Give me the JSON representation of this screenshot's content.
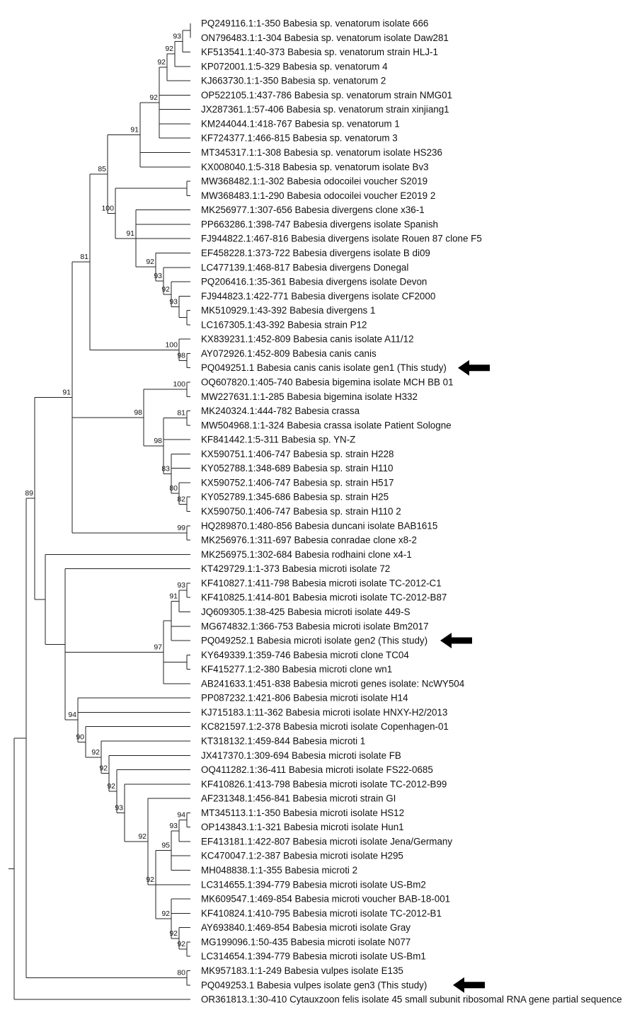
{
  "figure": {
    "line_color": "#222222",
    "arrow_color": "#000000"
  },
  "tips": [
    {
      "id": "t0",
      "label": "PQ249116.1:1-350 Babesia sp. venatorum isolate 666"
    },
    {
      "id": "t1",
      "label": "ON796483.1:1-304 Babesia sp. venatorum isolate Daw281"
    },
    {
      "id": "t2",
      "label": "KF513541.1:40-373 Babesia sp. venatorum strain HLJ-1"
    },
    {
      "id": "t3",
      "label": "KP072001.1:5-329 Babesia sp. venatorum 4"
    },
    {
      "id": "t4",
      "label": "KJ663730.1:1-350 Babesia sp. venatorum 2"
    },
    {
      "id": "t5",
      "label": "OP522105.1:437-786 Babesia sp. venatorum strain NMG01"
    },
    {
      "id": "t6",
      "label": "JX287361.1:57-406 Babesia sp. venatorum strain xinjiang1"
    },
    {
      "id": "t7",
      "label": "KM244044.1:418-767 Babesia sp. venatorum 1"
    },
    {
      "id": "t8",
      "label": "KF724377.1:466-815 Babesia sp. venatorum 3"
    },
    {
      "id": "t9",
      "label": "MT345317.1:1-308 Babesia sp. venatorum isolate HS236"
    },
    {
      "id": "t10",
      "label": "KX008040.1:5-318 Babesia sp. venatorum isolate Bv3"
    },
    {
      "id": "t11",
      "label": "MW368482.1:1-302 Babesia odocoilei voucher S2019"
    },
    {
      "id": "t12",
      "label": "MW368483.1:1-290 Babesia odocoilei voucher E2019 2"
    },
    {
      "id": "t13",
      "label": "MK256977.1:307-656 Babesia divergens clone x36-1"
    },
    {
      "id": "t14",
      "label": "PP663286.1:398-747 Babesia divergens isolate Spanish"
    },
    {
      "id": "t15",
      "label": "FJ944822.1:467-816 Babesia divergens isolate Rouen 87 clone F5"
    },
    {
      "id": "t16",
      "label": "EF458228.1:373-722 Babesia divergens isolate B di09"
    },
    {
      "id": "t17",
      "label": "LC477139.1:468-817 Babesia divergens Donegal"
    },
    {
      "id": "t18",
      "label": "PQ206416.1:35-361 Babesia divergens isolate Devon"
    },
    {
      "id": "t19",
      "label": "FJ944823.1:422-771 Babesia divergens isolate CF2000"
    },
    {
      "id": "t20",
      "label": "MK510929.1:43-392 Babesia divergens 1"
    },
    {
      "id": "t21",
      "label": "LC167305.1:43-392 Babesia strain P12"
    },
    {
      "id": "t22",
      "label": "KX839231.1:452-809 Babesia canis isolate A11/12"
    },
    {
      "id": "t23",
      "label": "AY072926.1:452-809 Babesia canis canis"
    },
    {
      "id": "t24",
      "label": "PQ049251.1 Babesia canis canis isolate gen1 (This study)"
    },
    {
      "id": "t25",
      "label": "OQ607820.1:405-740 Babesia bigemina isolate MCH BB 01"
    },
    {
      "id": "t26",
      "label": "MW227631.1:1-285 Babesia bigemina isolate H332"
    },
    {
      "id": "t27",
      "label": "MK240324.1:444-782 Babesia crassa"
    },
    {
      "id": "t28",
      "label": "MW504968.1:1-324 Babesia crassa isolate Patient Sologne"
    },
    {
      "id": "t29",
      "label": "KF841442.1:5-311 Babesia sp. YN-Z"
    },
    {
      "id": "t30",
      "label": "KX590751.1:406-747 Babesia sp. strain H228"
    },
    {
      "id": "t31",
      "label": "KY052788.1:348-689 Babesia sp. strain H110"
    },
    {
      "id": "t32",
      "label": "KX590752.1:406-747 Babesia sp. strain H517"
    },
    {
      "id": "t33",
      "label": "KY052789.1:345-686 Babesia sp. strain H25"
    },
    {
      "id": "t34",
      "label": "KX590750.1:406-747 Babesia sp. strain H110 2"
    },
    {
      "id": "t35",
      "label": "HQ289870.1:480-856 Babesia duncani isolate BAB1615"
    },
    {
      "id": "t36",
      "label": "MK256976.1:311-697 Babesia conradae clone x8-2"
    },
    {
      "id": "t37",
      "label": "MK256975.1:302-684 Babesia rodhaini clone x4-1"
    },
    {
      "id": "t38",
      "label": "KT429729.1:1-373 Babesia microti isolate 72"
    },
    {
      "id": "t39",
      "label": "KF410827.1:411-798 Babesia microti isolate TC-2012-C1"
    },
    {
      "id": "t40",
      "label": "KF410825.1:414-801 Babesia microti isolate TC-2012-B87"
    },
    {
      "id": "t41",
      "label": "JQ609305.1:38-425 Babesia microti isolate 449-S"
    },
    {
      "id": "t42",
      "label": "MG674832.1:366-753 Babesia microti isolate Bm2017"
    },
    {
      "id": "t43",
      "label": "PQ049252.1 Babesia microti isolate gen2 (This study)"
    },
    {
      "id": "t44",
      "label": "KY649339.1:359-746 Babesia microti clone TC04"
    },
    {
      "id": "t45",
      "label": "KF415277.1:2-380 Babesia microti clone wn1"
    },
    {
      "id": "t46",
      "label": "AB241633.1:451-838 Babesia microti genes isolate: NcWY504"
    },
    {
      "id": "t47",
      "label": "PP087232.1:421-806 Babesia microti isolate H14"
    },
    {
      "id": "t48",
      "label": "KJ715183.1:11-362 Babesia microti isolate HNXY-H2/2013"
    },
    {
      "id": "t49",
      "label": "KC821597.1:2-378 Babesia microti isolate Copenhagen-01"
    },
    {
      "id": "t50",
      "label": "KT318132.1:459-844 Babesia microti 1"
    },
    {
      "id": "t51",
      "label": "JX417370.1:309-694 Babesia microti isolate FB"
    },
    {
      "id": "t52",
      "label": "OQ411282.1:36-411 Babesia microti isolate FS22-0685"
    },
    {
      "id": "t53",
      "label": "KF410826.1:413-798 Babesia microti isolate TC-2012-B99"
    },
    {
      "id": "t54",
      "label": "AF231348.1:456-841 Babesia microti strain GI"
    },
    {
      "id": "t55",
      "label": "MT345113.1:1-350 Babesia microti isolate HS12"
    },
    {
      "id": "t56",
      "label": "OP143843.1:1-321 Babesia microti isolate Hun1"
    },
    {
      "id": "t57",
      "label": "EF413181.1:422-807 Babesia microti isolate Jena/Germany"
    },
    {
      "id": "t58",
      "label": "KC470047.1:2-387 Babesia microti isolate H295"
    },
    {
      "id": "t59",
      "label": "MH048838.1:1-355 Babesia microti 2"
    },
    {
      "id": "t60",
      "label": "LC314655.1:394-779 Babesia microti isolate US-Bm2"
    },
    {
      "id": "t61",
      "label": "MK609547.1:469-854 Babesia microti voucher BAB-18-001"
    },
    {
      "id": "t62",
      "label": "KF410824.1:410-795 Babesia microti isolate TC-2012-B1"
    },
    {
      "id": "t63",
      "label": "AY693840.1:469-854 Babesia microti isolate Gray"
    },
    {
      "id": "t64",
      "label": "MG199096.1:50-435 Babesia microti isolate N077"
    },
    {
      "id": "t65",
      "label": "LC314654.1:394-779 Babesia microti isolate US-Bm1"
    },
    {
      "id": "t66",
      "label": "MK957183.1:1-249 Babesia vulpes isolate E135"
    },
    {
      "id": "t67",
      "label": "PQ049253.1 Babesia vulpes isolate gen3 (This study)"
    },
    {
      "id": "t68",
      "label": "OR361813.1:30-410 Cytauxzoon felis isolate 45 small subunit ribosomal RNA gene partial sequence"
    }
  ],
  "clades": [
    {
      "id": "A",
      "children": [
        "t0",
        "t1"
      ]
    },
    {
      "id": "B",
      "support": "93",
      "children": [
        "A",
        "t2"
      ]
    },
    {
      "id": "C",
      "support": "92",
      "children": [
        "B",
        "t3"
      ]
    },
    {
      "id": "D",
      "support": "92",
      "children": [
        "C",
        "t4"
      ]
    },
    {
      "id": "E",
      "support": "92",
      "children": [
        "D",
        "t5",
        "t6",
        "t7",
        "t8"
      ]
    },
    {
      "id": "F",
      "support": "91",
      "children": [
        "E",
        "t9",
        "t10"
      ]
    },
    {
      "id": "G",
      "children": [
        "t11",
        "t12"
      ]
    },
    {
      "id": "H",
      "children": [
        "t20",
        "t21"
      ]
    },
    {
      "id": "I",
      "support": "93",
      "children": [
        "H",
        "t19"
      ]
    },
    {
      "id": "J",
      "support": "92",
      "children": [
        "I",
        "t18"
      ]
    },
    {
      "id": "K",
      "support": "93",
      "children": [
        "J",
        "t17"
      ]
    },
    {
      "id": "L",
      "support": "92",
      "children": [
        "K",
        "t16"
      ]
    },
    {
      "id": "M",
      "support": "91",
      "children": [
        "L",
        "t13",
        "t14",
        "t15"
      ]
    },
    {
      "id": "N",
      "support": "100",
      "children": [
        "G",
        "M"
      ]
    },
    {
      "id": "O",
      "support": "85",
      "children": [
        "F",
        "N"
      ]
    },
    {
      "id": "P",
      "support": "98",
      "children": [
        "t23",
        "t24"
      ]
    },
    {
      "id": "Q",
      "support": "100",
      "children": [
        "t22",
        "P"
      ]
    },
    {
      "id": "R",
      "support": "81",
      "children": [
        "O",
        "Q"
      ]
    },
    {
      "id": "S",
      "support": "100",
      "children": [
        "t25",
        "t26"
      ]
    },
    {
      "id": "T",
      "support": "81",
      "children": [
        "t27",
        "t28"
      ]
    },
    {
      "id": "U",
      "support": "82",
      "children": [
        "t33",
        "t34"
      ]
    },
    {
      "id": "V",
      "support": "80",
      "children": [
        "t32",
        "U"
      ]
    },
    {
      "id": "W",
      "support": "83",
      "children": [
        "t30",
        "t31",
        "V"
      ]
    },
    {
      "id": "X",
      "support": "98",
      "children": [
        "T",
        "t29",
        "W"
      ]
    },
    {
      "id": "Y",
      "support": "98",
      "children": [
        "S",
        "X"
      ]
    },
    {
      "id": "Z",
      "support": "99",
      "children": [
        "t35",
        "t36"
      ]
    },
    {
      "id": "AA",
      "support": "91",
      "children": [
        "R",
        "Y",
        "Z"
      ]
    },
    {
      "id": "AB",
      "support": "93",
      "children": [
        "t39",
        "t40"
      ]
    },
    {
      "id": "AC",
      "support": "91",
      "children": [
        "AB",
        "t41"
      ]
    },
    {
      "id": "AD",
      "children": [
        "AC",
        "t42",
        "t43"
      ]
    },
    {
      "id": "AE",
      "children": [
        "t44",
        "t45"
      ]
    },
    {
      "id": "AF",
      "support": "97",
      "children": [
        "AD",
        "AE",
        "t46"
      ]
    },
    {
      "id": "AG",
      "support": "94",
      "children": [
        "t55",
        "t56"
      ]
    },
    {
      "id": "AH",
      "support": "93",
      "children": [
        "AG",
        "t57"
      ]
    },
    {
      "id": "AI",
      "support": "95",
      "children": [
        "AH",
        "t58",
        "t59"
      ]
    },
    {
      "id": "AJ",
      "support": "92",
      "children": [
        "t64",
        "t65"
      ]
    },
    {
      "id": "AK",
      "support": "92",
      "children": [
        "t63",
        "AJ"
      ]
    },
    {
      "id": "AL",
      "support": "92",
      "children": [
        "t61",
        "t62",
        "AK"
      ]
    },
    {
      "id": "AM",
      "support": "92",
      "children": [
        "AI",
        "t60",
        "AL"
      ]
    },
    {
      "id": "AN",
      "support": "92",
      "children": [
        "t54",
        "AM"
      ]
    },
    {
      "id": "AO",
      "support": "93",
      "children": [
        "t53",
        "AN"
      ]
    },
    {
      "id": "AP",
      "support": "92",
      "children": [
        "t52",
        "AO"
      ]
    },
    {
      "id": "AQ",
      "support": "92",
      "children": [
        "t51",
        "AP"
      ]
    },
    {
      "id": "AR",
      "support": "92",
      "children": [
        "t50",
        "AQ"
      ]
    },
    {
      "id": "AS",
      "support": "90",
      "children": [
        "t49",
        "AR"
      ]
    },
    {
      "id": "AT",
      "support": "94",
      "children": [
        "t47",
        "t48",
        "AS"
      ]
    },
    {
      "id": "AU",
      "children": [
        "t38",
        "AF",
        "AT"
      ]
    },
    {
      "id": "AV",
      "children": [
        "t37",
        "AU"
      ]
    },
    {
      "id": "AW",
      "support": "89",
      "children": [
        "AA",
        "AV"
      ]
    },
    {
      "id": "AX",
      "support": "80",
      "children": [
        "t66",
        "t67"
      ]
    },
    {
      "id": "AY",
      "children": [
        "AW",
        "AX"
      ]
    },
    {
      "id": "ROOT",
      "children": [
        "AY",
        "t68"
      ]
    }
  ],
  "arrows": [
    {
      "id": "arrow-gen1",
      "tip": "t24"
    },
    {
      "id": "arrow-gen2",
      "tip": "t43"
    },
    {
      "id": "arrow-gen3",
      "tip": "t67"
    }
  ]
}
